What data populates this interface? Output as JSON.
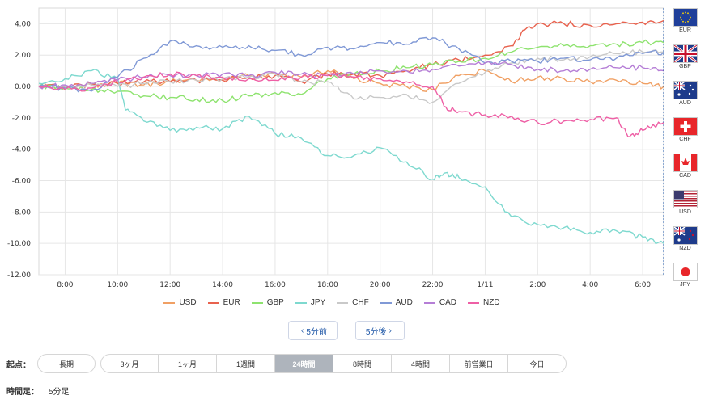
{
  "chart_data": {
    "type": "line",
    "ylim": [
      -12,
      5
    ],
    "y_ticks": [
      "4.00",
      "2.00",
      "0.00",
      "-2.00",
      "-4.00",
      "-6.00",
      "-8.00",
      "-10.00",
      "-12.00"
    ],
    "y_tick_values": [
      4,
      2,
      0,
      -2,
      -4,
      -6,
      -8,
      -10,
      -12
    ],
    "x_range": [
      7.0,
      30.8
    ],
    "x_ticks": [
      "8:00",
      "10:00",
      "12:00",
      "14:00",
      "16:00",
      "18:00",
      "20:00",
      "22:00",
      "1/11",
      "2:00",
      "4:00",
      "6:00"
    ],
    "x_tick_values": [
      8,
      10,
      12,
      14,
      16,
      18,
      20,
      22,
      24,
      26,
      28,
      30
    ],
    "grid": true,
    "legend_position": "bottom",
    "series": [
      {
        "name": "USD",
        "color": "#f0a064",
        "x": [
          7.0,
          8,
          9,
          10,
          11,
          12,
          13,
          14,
          15,
          16,
          17,
          18,
          19,
          20,
          21,
          22,
          23,
          24,
          25,
          26,
          27,
          28,
          29,
          30,
          30.8
        ],
        "y": [
          0.0,
          0.0,
          0.1,
          0.2,
          0.1,
          0.3,
          0.4,
          0.5,
          0.7,
          0.8,
          0.6,
          1.0,
          0.5,
          0.2,
          0.0,
          -0.2,
          0.7,
          1.0,
          0.3,
          0.6,
          0.5,
          0.3,
          0.4,
          0.2,
          0.0
        ]
      },
      {
        "name": "EUR",
        "color": "#e8624e",
        "x": [
          7.0,
          8,
          9,
          10,
          11,
          12,
          13,
          14,
          15,
          16,
          17,
          18,
          19,
          20,
          21,
          22,
          23,
          24,
          25,
          25.5,
          26,
          27,
          28,
          29,
          30,
          30.8
        ],
        "y": [
          0.0,
          0.0,
          0.1,
          0.2,
          0.3,
          0.3,
          0.4,
          0.4,
          0.6,
          0.7,
          0.3,
          0.8,
          0.8,
          0.7,
          1.0,
          1.4,
          1.7,
          2.0,
          2.6,
          3.6,
          4.0,
          4.0,
          3.9,
          4.0,
          4.1,
          4.2
        ]
      },
      {
        "name": "GBP",
        "color": "#8ee36f",
        "x": [
          7.0,
          8,
          9,
          10,
          11,
          12,
          13,
          14,
          15,
          16,
          17,
          18,
          19,
          20,
          21,
          22,
          23,
          24,
          25,
          26,
          27,
          28,
          29,
          30,
          30.8
        ],
        "y": [
          0.0,
          -0.1,
          -0.2,
          -0.3,
          -0.6,
          -0.7,
          -0.8,
          -0.9,
          -0.6,
          -0.4,
          -0.5,
          0.5,
          0.8,
          1.0,
          1.2,
          1.4,
          1.6,
          1.8,
          2.2,
          2.5,
          2.6,
          2.6,
          2.7,
          2.8,
          2.8
        ]
      },
      {
        "name": "JPY",
        "color": "#7ed9cf",
        "x": [
          7.0,
          8,
          9,
          10,
          10.3,
          11,
          12,
          13,
          14,
          15,
          16,
          17,
          18,
          19,
          20,
          21,
          22,
          22.5,
          23,
          24,
          25,
          26,
          27,
          28,
          29,
          30,
          30.8
        ],
        "y": [
          0.2,
          0.5,
          1.0,
          0.5,
          -1.5,
          -2.2,
          -2.8,
          -2.6,
          -2.7,
          -1.9,
          -3.0,
          -3.3,
          -4.4,
          -4.4,
          -3.9,
          -4.8,
          -5.9,
          -5.5,
          -5.8,
          -6.4,
          -8.3,
          -8.8,
          -9.0,
          -9.3,
          -9.2,
          -9.6,
          -10.0
        ]
      },
      {
        "name": "CHF",
        "color": "#c9c9c9",
        "x": [
          7.0,
          8,
          9,
          10,
          11,
          12,
          13,
          14,
          15,
          16,
          17,
          18,
          19,
          20,
          21,
          22,
          23,
          24,
          25,
          26,
          27,
          28,
          29,
          30,
          30.8
        ],
        "y": [
          0.0,
          0.0,
          0.1,
          0.0,
          0.2,
          0.3,
          0.4,
          0.5,
          0.6,
          0.8,
          0.3,
          0.3,
          -0.8,
          -0.7,
          -0.5,
          -1.0,
          0.2,
          0.9,
          1.5,
          1.8,
          1.7,
          1.9,
          2.1,
          2.2,
          2.2
        ]
      },
      {
        "name": "AUD",
        "color": "#8099d6",
        "x": [
          7.0,
          8,
          9,
          10,
          11,
          12,
          13,
          14,
          15,
          16,
          17,
          18,
          19,
          20,
          21,
          22,
          23,
          24,
          25,
          26,
          27,
          28,
          29,
          30,
          30.8
        ],
        "y": [
          0.0,
          -0.1,
          -0.3,
          0.6,
          1.8,
          2.9,
          2.6,
          2.5,
          2.6,
          2.3,
          2.0,
          2.5,
          2.4,
          2.8,
          2.7,
          3.1,
          2.4,
          1.5,
          1.6,
          1.6,
          1.8,
          1.7,
          1.8,
          2.1,
          2.2
        ]
      },
      {
        "name": "CAD",
        "color": "#b57ed6",
        "x": [
          7.0,
          8,
          9,
          10,
          11,
          12,
          13,
          14,
          15,
          16,
          17,
          18,
          19,
          20,
          21,
          22,
          23,
          24,
          25,
          26,
          27,
          28,
          29,
          30,
          30.8
        ],
        "y": [
          0.0,
          0.1,
          0.2,
          0.4,
          0.6,
          0.7,
          0.7,
          0.8,
          0.7,
          0.9,
          0.8,
          0.7,
          0.8,
          1.0,
          1.0,
          1.1,
          1.3,
          1.5,
          1.4,
          1.1,
          1.0,
          1.1,
          1.2,
          1.2,
          1.0
        ]
      },
      {
        "name": "NZD",
        "color": "#ee5fa5",
        "x": [
          7.0,
          8,
          9,
          10,
          11,
          12,
          13,
          14,
          15,
          16,
          17,
          18,
          19,
          20,
          21,
          22,
          22.5,
          23,
          24,
          25,
          26,
          27,
          28,
          29,
          29.5,
          30,
          30.8
        ],
        "y": [
          0.0,
          -0.2,
          -0.1,
          0.3,
          0.6,
          0.8,
          0.7,
          0.6,
          0.5,
          0.4,
          0.6,
          0.7,
          0.6,
          0.5,
          0.3,
          0.0,
          -1.3,
          -1.6,
          -1.8,
          -1.9,
          -2.3,
          -2.2,
          -2.1,
          -2.0,
          -3.2,
          -2.8,
          -2.3
        ]
      }
    ]
  },
  "flags": [
    {
      "code": "EUR",
      "color": "#1f3f9a"
    },
    {
      "code": "GBP",
      "color": "#1e3b8b"
    },
    {
      "code": "AUD",
      "color": "#1e3b8b"
    },
    {
      "code": "CHF",
      "color": "#e8262a"
    },
    {
      "code": "CAD",
      "color": "#e8262a"
    },
    {
      "code": "USD",
      "color": "#b22234"
    },
    {
      "code": "NZD",
      "color": "#1e3b8b"
    },
    {
      "code": "JPY",
      "color": "#e8262a"
    }
  ],
  "nav": {
    "prev_label": "5分前",
    "next_label": "5分後"
  },
  "start": {
    "label": "起点：",
    "long_label": "長期",
    "periods": [
      "3ヶ月",
      "1ヶ月",
      "1週間",
      "24時間",
      "8時間",
      "4時間",
      "前営業日",
      "今日"
    ],
    "active_index": 3
  },
  "interval": {
    "label": "時間足：",
    "value": "5分足"
  }
}
